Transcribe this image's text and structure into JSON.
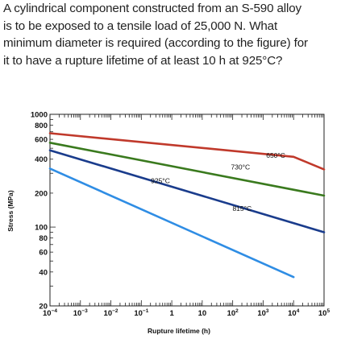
{
  "question": {
    "lines": [
      "A cylindrical component constructed from an S-590 alloy",
      "is to be exposed to a tensile load of 25,000 N. What",
      "minimum diameter is required (according to the figure) for",
      "it to have a rupture lifetime of at least 10 h at 925°C?"
    ]
  },
  "chart_data": {
    "type": "line",
    "xscale": "log",
    "yscale": "log",
    "xlabel": "Rupture lifetime (h)",
    "ylabel": "Stress (MPa)",
    "xlim": [
      0.0001,
      100000
    ],
    "ylim": [
      20,
      1000
    ],
    "xticks": [
      "10-4",
      "10-3",
      "10-2",
      "10-1",
      "1",
      "10",
      "102",
      "103",
      "104",
      "105"
    ],
    "yticks": [
      "20",
      "40",
      "60",
      "80",
      "100",
      "200",
      "400",
      "600",
      "800",
      "1000"
    ],
    "series": [
      {
        "name": "650°C",
        "color": "#c0392b",
        "x": [
          0.0001,
          10000,
          100000
        ],
        "y": [
          680,
          420,
          325
        ]
      },
      {
        "name": "730°C",
        "color": "#3a7a1e",
        "x": [
          0.0001,
          100000
        ],
        "y": [
          560,
          190
        ]
      },
      {
        "name": "815°C",
        "color": "#1a3c8c",
        "x": [
          0.0001,
          100000
        ],
        "y": [
          480,
          90
        ]
      },
      {
        "name": "925°C",
        "color": "#2f8de4",
        "x": [
          0.0001,
          10000
        ],
        "y": [
          330,
          36
        ]
      }
    ],
    "grid": false,
    "legend": "none"
  }
}
